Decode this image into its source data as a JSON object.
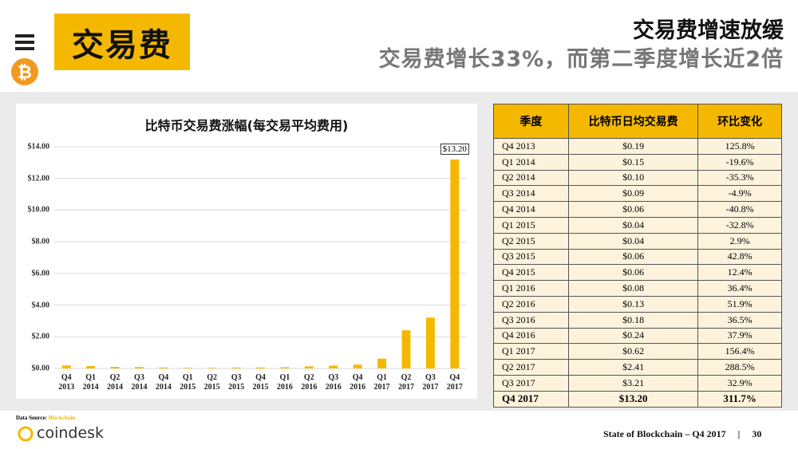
{
  "header": {
    "badge": "交易费",
    "title": "交易费增速放缓",
    "subtitle": "交易费增长33%，而第二季度增长近2倍"
  },
  "chart_data": {
    "type": "bar",
    "title": "比特币交易费涨幅(每交易平均费用)",
    "categories": [
      "Q4 2013",
      "Q1 2014",
      "Q2 2014",
      "Q3 2014",
      "Q4 2014",
      "Q1 2015",
      "Q2 2015",
      "Q3 2015",
      "Q4 2015",
      "Q1 2016",
      "Q2 2016",
      "Q3 2016",
      "Q4 2016",
      "Q1 2017",
      "Q2 2017",
      "Q3 2017",
      "Q4 2017"
    ],
    "values": [
      0.19,
      0.15,
      0.1,
      0.09,
      0.06,
      0.04,
      0.04,
      0.06,
      0.06,
      0.08,
      0.13,
      0.18,
      0.24,
      0.62,
      2.41,
      3.21,
      13.2
    ],
    "value_labels": [
      null,
      null,
      null,
      null,
      null,
      null,
      null,
      null,
      null,
      null,
      null,
      null,
      null,
      null,
      null,
      null,
      "$13.20"
    ],
    "color": "#f5b800",
    "ylim": [
      0,
      14
    ],
    "yticks": [
      {
        "value": 0,
        "label": "$0.00"
      },
      {
        "value": 2,
        "label": "$2.00"
      },
      {
        "value": 4,
        "label": "$4.00"
      },
      {
        "value": 6,
        "label": "$6.00"
      },
      {
        "value": 8,
        "label": "$8.00"
      },
      {
        "value": 10,
        "label": "$10.00"
      },
      {
        "value": 12,
        "label": "$12.00"
      },
      {
        "value": 14,
        "label": "$14.00"
      }
    ],
    "grid": true
  },
  "table": {
    "header": [
      "季度",
      "比特币日均交易费",
      "环比变化"
    ],
    "rows": [
      [
        "Q4 2013",
        "$0.19",
        "125.8%"
      ],
      [
        "Q1 2014",
        "$0.15",
        "-19.6%"
      ],
      [
        "Q2 2014",
        "$0.10",
        "-35.3%"
      ],
      [
        "Q3 2014",
        "$0.09",
        "-4.9%"
      ],
      [
        "Q4 2014",
        "$0.06",
        "-40.8%"
      ],
      [
        "Q1 2015",
        "$0.04",
        "-32.8%"
      ],
      [
        "Q2 2015",
        "$0.04",
        "2.9%"
      ],
      [
        "Q3 2015",
        "$0.06",
        "42.8%"
      ],
      [
        "Q4 2015",
        "$0.06",
        "12.4%"
      ],
      [
        "Q1 2016",
        "$0.08",
        "36.4%"
      ],
      [
        "Q2 2016",
        "$0.13",
        "51.9%"
      ],
      [
        "Q3 2016",
        "$0.18",
        "36.5%"
      ],
      [
        "Q4 2016",
        "$0.24",
        "37.9%"
      ],
      [
        "Q1 2017",
        "$0.62",
        "156.4%"
      ],
      [
        "Q2 2017",
        "$2.41",
        "288.5%"
      ],
      [
        "Q3 2017",
        "$3.21",
        "32.9%"
      ],
      [
        "Q4 2017",
        "$13.20",
        "311.7%"
      ]
    ]
  },
  "footer": {
    "source_label": "Data Source:",
    "source": "Blockchain",
    "logo": "coindesk",
    "report": "State of Blockchain – Q4 2017",
    "separator": "|",
    "page": "30"
  }
}
